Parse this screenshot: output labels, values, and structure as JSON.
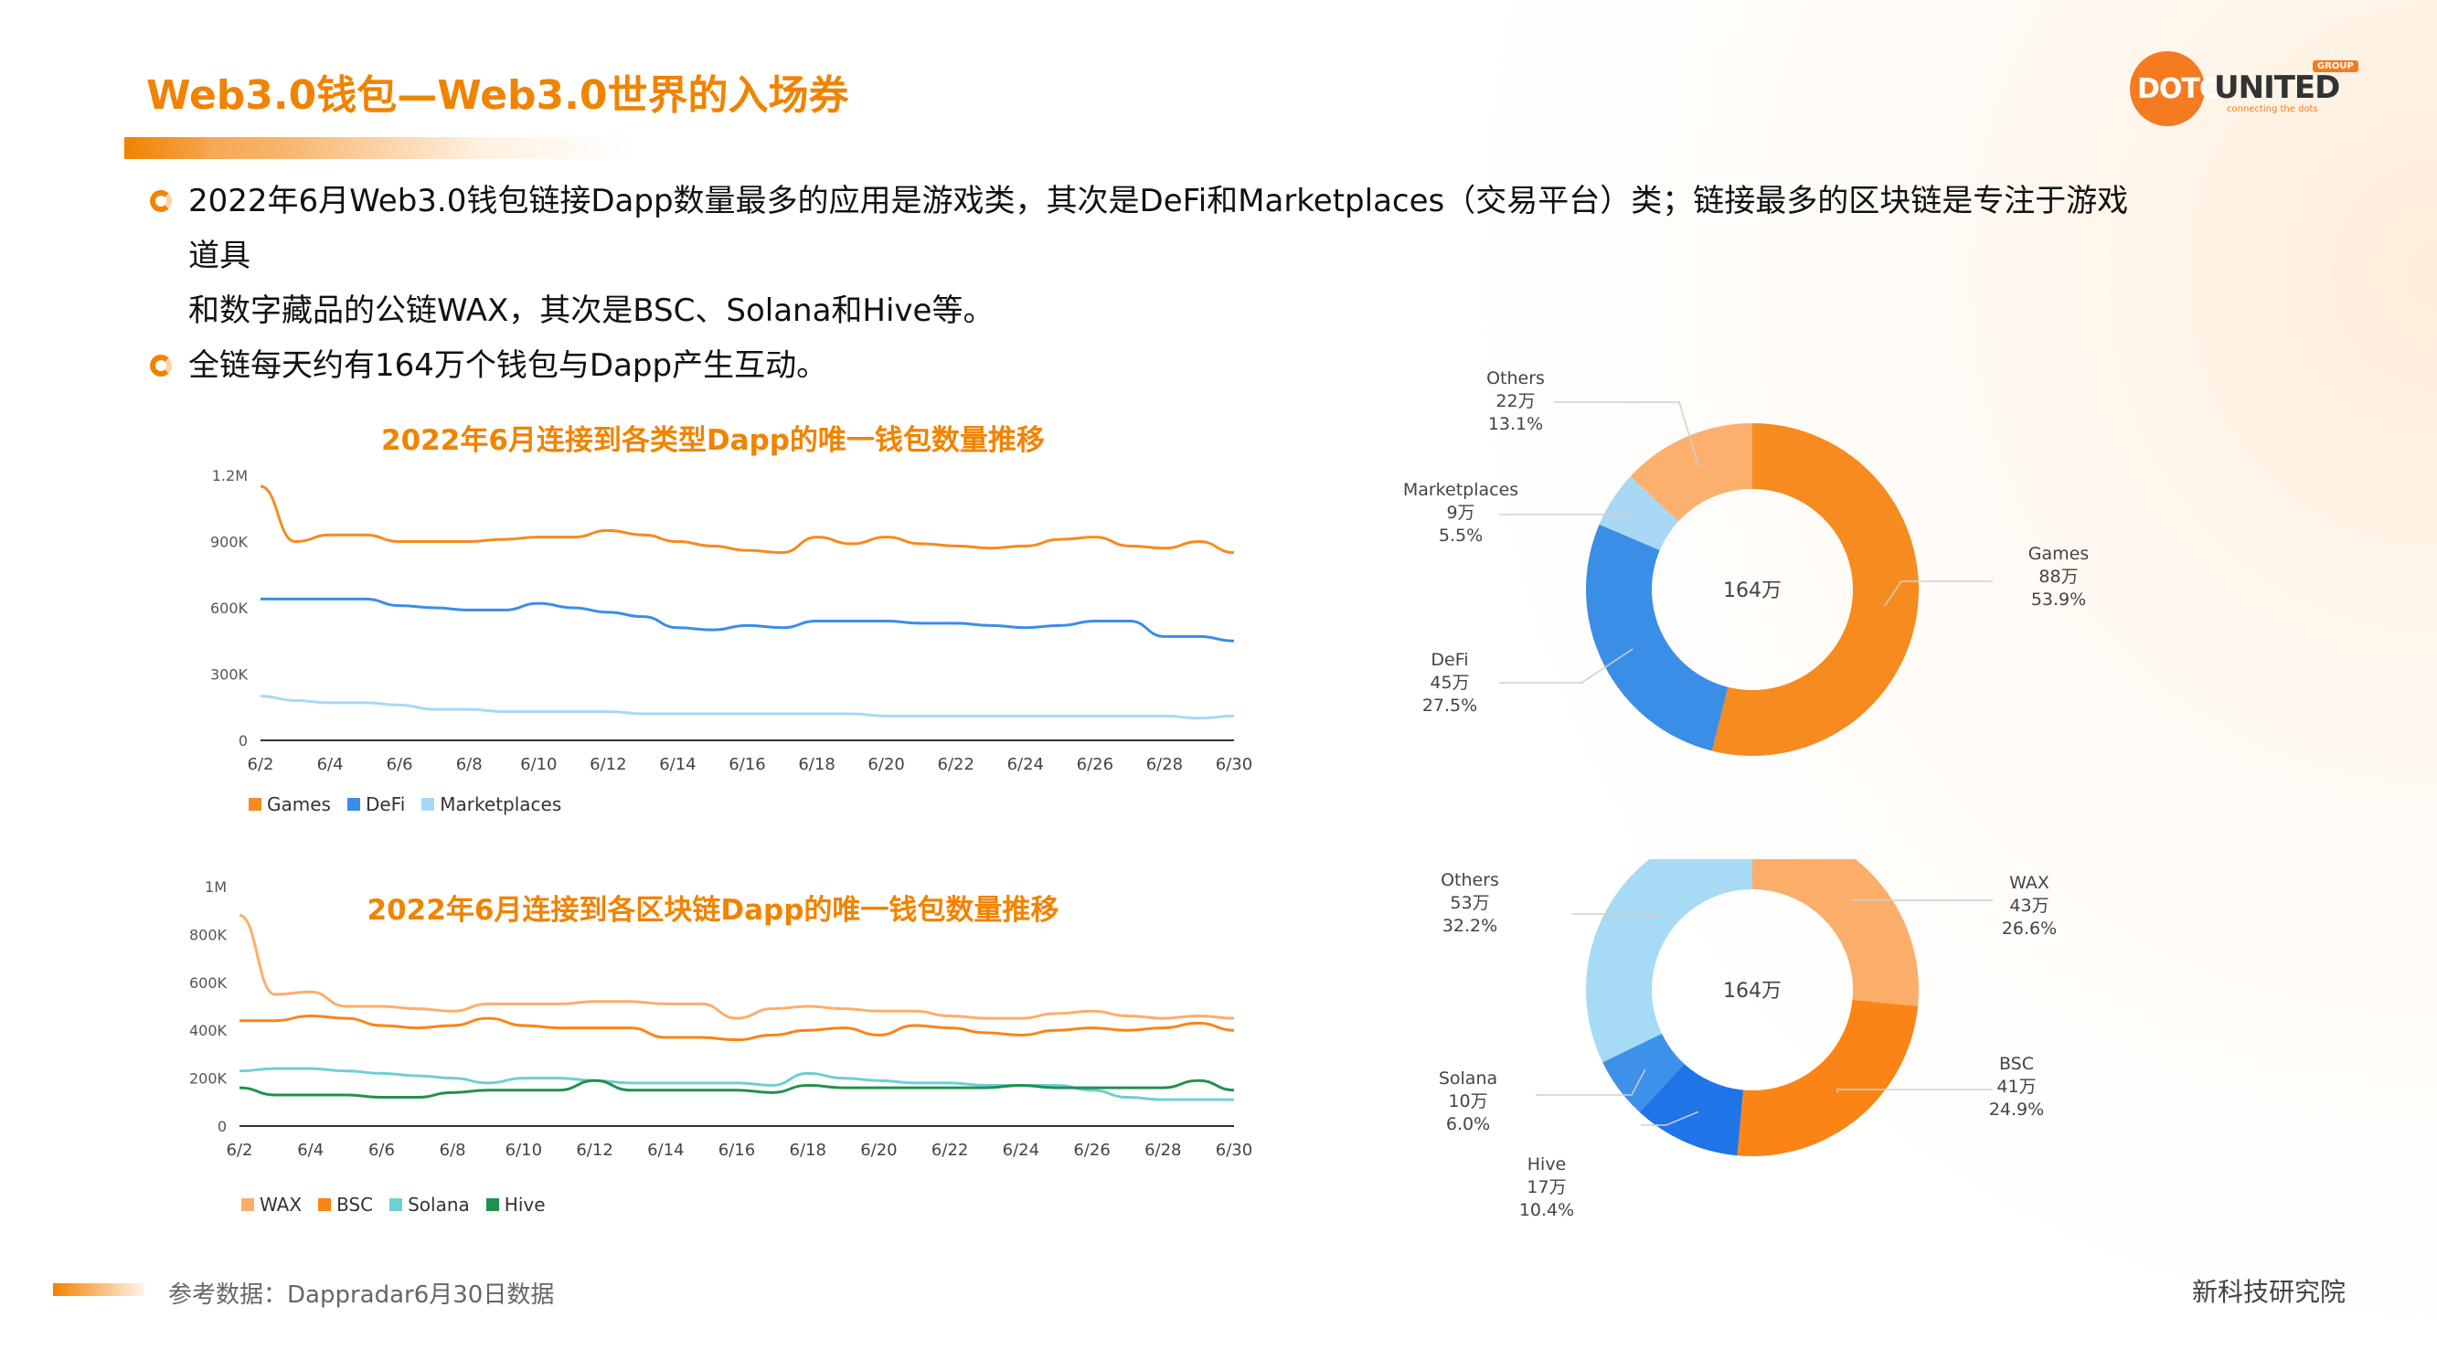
{
  "title": "Web3.0钱包—Web3.0世界的入场券",
  "logo": {
    "brand_left": "DOTC",
    "brand_right": "UNITED",
    "group": "GROUP",
    "tagline": "connecting the dots"
  },
  "bullets": [
    "2022年6月Web3.0钱包链接Dapp数量最多的应用是游戏类，其次是DeFi和Marketplaces（交易平台）类；链接最多的区块链是专注于游戏道具",
    "和数字藏品的公链WAX，其次是BSC、Solana和Hive等。",
    "全链每天约有164万个钱包与Dapp产生互动。"
  ],
  "footer": {
    "source": "参考数据：Dappradar6月30日数据",
    "institute": "新科技研究院"
  },
  "colors": {
    "accent": "#f08300",
    "games": "#f68b1f",
    "defi": "#3a8ee6",
    "marketplaces": "#a9d8f5",
    "others_light": "#fbb06d",
    "wax": "#fbae6a",
    "bsc": "#fb8417",
    "solana": "#3d91ea",
    "hive": "#1f74e8",
    "others_blue": "#a7dbf5",
    "sol_line": "#6fcfd3",
    "hive_line": "#21914f"
  },
  "chart_data": [
    {
      "type": "line",
      "title": "2022年6月连接到各类型Dapp的唯一钱包数量推移",
      "x_ticks": [
        "6/2",
        "6/4",
        "6/6",
        "6/8",
        "6/10",
        "6/12",
        "6/14",
        "6/16",
        "6/18",
        "6/20",
        "6/22",
        "6/24",
        "6/26",
        "6/28",
        "6/30"
      ],
      "y_ticks": [
        "0",
        "300K",
        "600K",
        "900K",
        "1.2M"
      ],
      "ylim": [
        0,
        1200000
      ],
      "x_days": [
        2,
        3,
        4,
        5,
        6,
        7,
        8,
        9,
        10,
        11,
        12,
        13,
        14,
        15,
        16,
        17,
        18,
        19,
        20,
        21,
        22,
        23,
        24,
        25,
        26,
        27,
        28,
        29,
        30
      ],
      "series": [
        {
          "name": "Games",
          "values": [
            1150000,
            900000,
            930000,
            930000,
            900000,
            900000,
            900000,
            910000,
            920000,
            920000,
            950000,
            930000,
            900000,
            880000,
            860000,
            850000,
            920000,
            890000,
            920000,
            890000,
            880000,
            870000,
            880000,
            910000,
            920000,
            880000,
            870000,
            900000,
            850000
          ]
        },
        {
          "name": "DeFi",
          "values": [
            640000,
            640000,
            640000,
            640000,
            610000,
            600000,
            590000,
            590000,
            620000,
            600000,
            580000,
            560000,
            510000,
            500000,
            520000,
            510000,
            540000,
            540000,
            540000,
            530000,
            530000,
            520000,
            510000,
            520000,
            540000,
            540000,
            470000,
            470000,
            450000
          ]
        },
        {
          "name": "Marketplaces",
          "values": [
            200000,
            180000,
            170000,
            170000,
            160000,
            140000,
            140000,
            130000,
            130000,
            130000,
            130000,
            120000,
            120000,
            120000,
            120000,
            120000,
            120000,
            120000,
            110000,
            110000,
            110000,
            110000,
            110000,
            110000,
            110000,
            110000,
            110000,
            100000,
            110000
          ]
        }
      ],
      "legend": "bottom-left"
    },
    {
      "type": "line",
      "title": "2022年6月连接到各区块链Dapp的唯一钱包数量推移",
      "x_ticks": [
        "6/2",
        "6/4",
        "6/6",
        "6/8",
        "6/10",
        "6/12",
        "6/14",
        "6/16",
        "6/18",
        "6/20",
        "6/22",
        "6/24",
        "6/26",
        "6/28",
        "6/30"
      ],
      "y_ticks": [
        "0",
        "200K",
        "400K",
        "600K",
        "800K",
        "1M"
      ],
      "ylim": [
        0,
        1000000
      ],
      "x_days": [
        2,
        3,
        4,
        5,
        6,
        7,
        8,
        9,
        10,
        11,
        12,
        13,
        14,
        15,
        16,
        17,
        18,
        19,
        20,
        21,
        22,
        23,
        24,
        25,
        26,
        27,
        28,
        29,
        30
      ],
      "series": [
        {
          "name": "WAX",
          "values": [
            880000,
            550000,
            560000,
            500000,
            500000,
            490000,
            480000,
            510000,
            510000,
            510000,
            520000,
            520000,
            510000,
            510000,
            450000,
            490000,
            500000,
            490000,
            480000,
            480000,
            460000,
            450000,
            450000,
            470000,
            480000,
            460000,
            450000,
            460000,
            450000
          ]
        },
        {
          "name": "BSC",
          "values": [
            440000,
            440000,
            460000,
            450000,
            420000,
            410000,
            420000,
            450000,
            420000,
            410000,
            410000,
            410000,
            370000,
            370000,
            360000,
            380000,
            400000,
            410000,
            380000,
            420000,
            410000,
            390000,
            380000,
            400000,
            410000,
            400000,
            410000,
            430000,
            400000
          ]
        },
        {
          "name": "Solana",
          "values": [
            230000,
            240000,
            240000,
            230000,
            220000,
            210000,
            200000,
            180000,
            200000,
            200000,
            190000,
            180000,
            180000,
            180000,
            180000,
            170000,
            220000,
            200000,
            190000,
            180000,
            180000,
            170000,
            170000,
            170000,
            150000,
            120000,
            110000,
            110000,
            110000
          ]
        },
        {
          "name": "Hive",
          "values": [
            160000,
            130000,
            130000,
            130000,
            120000,
            120000,
            140000,
            150000,
            150000,
            150000,
            190000,
            150000,
            150000,
            150000,
            150000,
            140000,
            170000,
            160000,
            160000,
            160000,
            160000,
            160000,
            170000,
            160000,
            160000,
            160000,
            160000,
            190000,
            150000
          ]
        }
      ],
      "legend": "bottom-left"
    },
    {
      "type": "pie",
      "center_label": "164万",
      "slices": [
        {
          "name": "Games",
          "amount": "88万",
          "percent": 53.9
        },
        {
          "name": "DeFi",
          "amount": "45万",
          "percent": 27.5
        },
        {
          "name": "Marketplaces",
          "amount": "9万",
          "percent": 5.5
        },
        {
          "name": "Others",
          "amount": "22万",
          "percent": 13.1
        }
      ]
    },
    {
      "type": "pie",
      "center_label": "164万",
      "slices": [
        {
          "name": "WAX",
          "amount": "43万",
          "percent": 26.6
        },
        {
          "name": "BSC",
          "amount": "41万",
          "percent": 24.9
        },
        {
          "name": "Hive",
          "amount": "17万",
          "percent": 10.4
        },
        {
          "name": "Solana",
          "amount": "10万",
          "percent": 6.0
        },
        {
          "name": "Others",
          "amount": "53万",
          "percent": 32.2
        }
      ]
    }
  ]
}
